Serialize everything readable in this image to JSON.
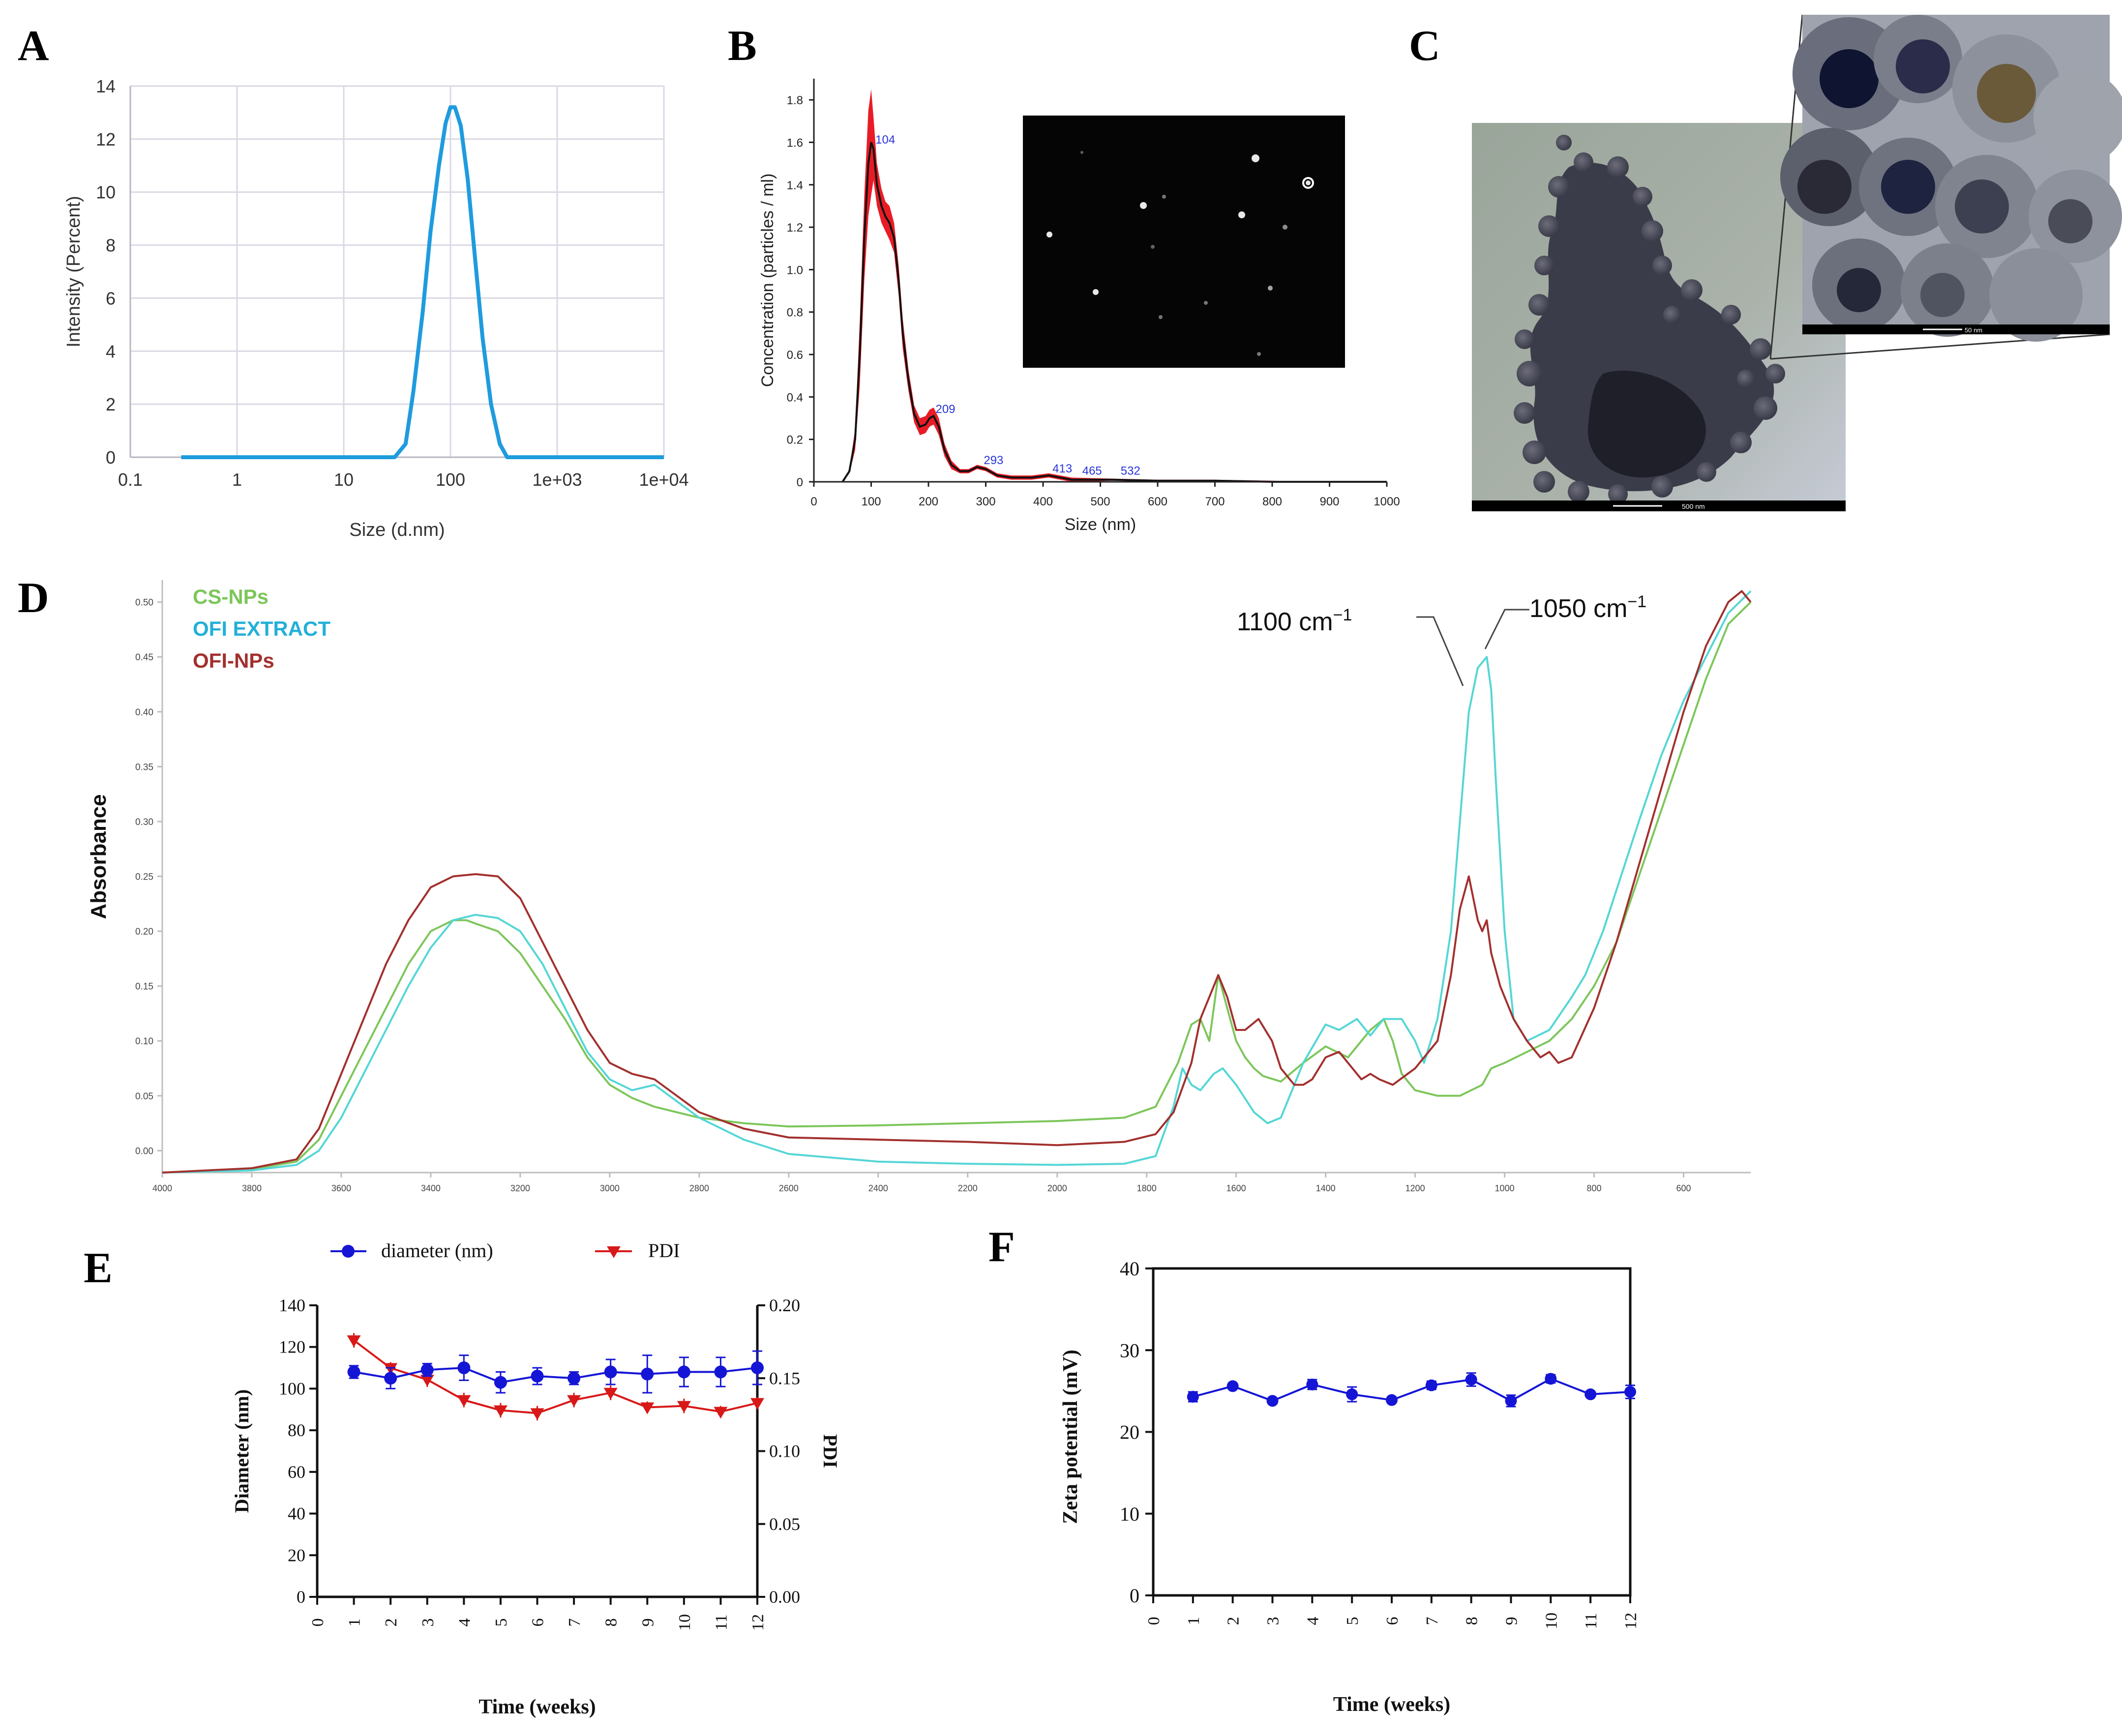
{
  "panels": {
    "A": "A",
    "B": "B",
    "C": "C",
    "D": "D",
    "E": "E",
    "F": "F"
  },
  "colors": {
    "dls": "#1f9bde",
    "nta_band": "#e8101a",
    "nta_mean": "#111111",
    "nta_label": "#2a35d8",
    "cs_nps": "#7cc65a",
    "ofi_extract": "#55d6d6",
    "ofi_nps": "#a2302e",
    "ofi_extract_label": "#22b0d8",
    "diameter": "#1515d6",
    "pdi": "#d81818",
    "zeta": "#1515d6"
  },
  "chart_data": [
    {
      "panel": "A",
      "type": "line",
      "xlabel": "Size (d.nm)",
      "ylabel": "Intensity (Percent)",
      "xscale": "log",
      "xlim": [
        0.1,
        10000
      ],
      "ylim": [
        0,
        14
      ],
      "xticks": [
        "0.1",
        "1",
        "10",
        "100",
        "1e+03",
        "1e+04"
      ],
      "yticks": [
        "0",
        "2",
        "4",
        "6",
        "8",
        "10",
        "12",
        "14"
      ],
      "grid": true,
      "x": [
        0.3,
        30,
        38,
        45,
        55,
        65,
        78,
        90,
        100,
        110,
        125,
        145,
        170,
        200,
        240,
        290,
        340,
        10000
      ],
      "y": [
        0,
        0,
        0.5,
        2.5,
        5.5,
        8.5,
        11.0,
        12.6,
        13.2,
        13.2,
        12.5,
        10.5,
        7.5,
        4.5,
        2.0,
        0.5,
        0,
        0
      ]
    },
    {
      "panel": "B",
      "type": "line",
      "xlabel": "Size (nm)",
      "ylabel": "Concentration (particles / ml)",
      "xlim": [
        0,
        1000
      ],
      "ylim": [
        0,
        1.9
      ],
      "xticks": [
        "0",
        "100",
        "200",
        "300",
        "400",
        "500",
        "600",
        "700",
        "800",
        "900",
        "1000"
      ],
      "yticks": [
        "0",
        "0.2",
        "0.4",
        "0.6",
        "0.8",
        "1.0",
        "1.2",
        "1.4",
        "1.6",
        "1.8"
      ],
      "peak_labels": [
        {
          "x": 104,
          "y": 1.58,
          "text": "104"
        },
        {
          "x": 209,
          "y": 0.31,
          "text": "209"
        },
        {
          "x": 293,
          "y": 0.07,
          "text": "293"
        },
        {
          "x": 413,
          "y": 0.03,
          "text": "413"
        },
        {
          "x": 465,
          "y": 0.02,
          "text": "465"
        },
        {
          "x": 532,
          "y": 0.02,
          "text": "532"
        }
      ],
      "x": [
        50,
        62,
        72,
        80,
        88,
        95,
        100,
        104,
        110,
        118,
        125,
        132,
        140,
        148,
        155,
        165,
        175,
        185,
        195,
        202,
        209,
        218,
        228,
        240,
        255,
        270,
        285,
        300,
        320,
        345,
        380,
        410,
        450,
        520,
        600,
        700,
        800,
        900,
        1000
      ],
      "y": [
        0.0,
        0.05,
        0.2,
        0.6,
        1.15,
        1.5,
        1.6,
        1.57,
        1.4,
        1.3,
        1.25,
        1.22,
        1.15,
        0.95,
        0.7,
        0.48,
        0.32,
        0.26,
        0.27,
        0.3,
        0.31,
        0.26,
        0.15,
        0.08,
        0.05,
        0.05,
        0.07,
        0.06,
        0.03,
        0.02,
        0.02,
        0.03,
        0.01,
        0.01,
        0.005,
        0.005,
        0.0,
        0.0,
        0.0
      ],
      "band": [
        0.0,
        0.06,
        0.25,
        0.75,
        1.35,
        1.75,
        1.85,
        1.72,
        1.5,
        1.38,
        1.32,
        1.3,
        1.22,
        1.02,
        0.77,
        0.53,
        0.36,
        0.3,
        0.31,
        0.34,
        0.35,
        0.3,
        0.18,
        0.1,
        0.06,
        0.06,
        0.08,
        0.07,
        0.04,
        0.03,
        0.03,
        0.04,
        0.02,
        0.015,
        0.01,
        0.01,
        0.005,
        0.0,
        0.0
      ]
    },
    {
      "panel": "D",
      "type": "line",
      "ylabel": "Absorbance",
      "xlim": [
        4000,
        450
      ],
      "ylim": [
        -0.02,
        0.52
      ],
      "xticks": [
        "4000",
        "3800",
        "3600",
        "3400",
        "3200",
        "3000",
        "2800",
        "2600",
        "2400",
        "2200",
        "2000",
        "1800",
        "1600",
        "1400",
        "1200",
        "1000",
        "800",
        "600"
      ],
      "yticks": [
        "0.00",
        "0.05",
        "0.10",
        "0.15",
        "0.20",
        "0.25",
        "0.30",
        "0.35",
        "0.40",
        "0.45",
        "0.50"
      ],
      "legend_position": "top-left",
      "annotations": [
        {
          "text": "1100 cm",
          "sup": "−1",
          "x": 1060
        },
        {
          "text": "1050 cm",
          "sup": "−1",
          "x": 1030
        }
      ],
      "series": [
        {
          "name": "CS-NPs",
          "x": [
            4000,
            3800,
            3700,
            3650,
            3600,
            3550,
            3500,
            3450,
            3400,
            3350,
            3320,
            3300,
            3250,
            3200,
            3150,
            3100,
            3050,
            3000,
            2950,
            2900,
            2850,
            2800,
            2700,
            2600,
            2400,
            2200,
            2000,
            1850,
            1780,
            1730,
            1700,
            1680,
            1660,
            1640,
            1620,
            1600,
            1580,
            1560,
            1540,
            1500,
            1450,
            1400,
            1350,
            1300,
            1270,
            1250,
            1230,
            1200,
            1150,
            1100,
            1050,
            1030,
            1000,
            950,
            900,
            850,
            800,
            750,
            700,
            650,
            600,
            550,
            500,
            450
          ],
          "y": [
            -0.02,
            -0.017,
            -0.01,
            0.01,
            0.05,
            0.09,
            0.13,
            0.17,
            0.2,
            0.21,
            0.21,
            0.207,
            0.2,
            0.18,
            0.15,
            0.12,
            0.085,
            0.06,
            0.048,
            0.04,
            0.035,
            0.03,
            0.025,
            0.022,
            0.023,
            0.025,
            0.027,
            0.03,
            0.04,
            0.08,
            0.115,
            0.12,
            0.1,
            0.16,
            0.13,
            0.1,
            0.085,
            0.075,
            0.068,
            0.063,
            0.08,
            0.095,
            0.085,
            0.11,
            0.12,
            0.1,
            0.07,
            0.055,
            0.05,
            0.05,
            0.06,
            0.075,
            0.08,
            0.09,
            0.1,
            0.12,
            0.15,
            0.19,
            0.25,
            0.31,
            0.37,
            0.43,
            0.48,
            0.5
          ]
        },
        {
          "name": "OFI EXTRACT",
          "x": [
            4000,
            3800,
            3700,
            3650,
            3600,
            3550,
            3500,
            3450,
            3400,
            3350,
            3300,
            3250,
            3200,
            3150,
            3100,
            3050,
            3000,
            2950,
            2900,
            2850,
            2800,
            2700,
            2600,
            2400,
            2200,
            2000,
            1850,
            1780,
            1740,
            1720,
            1700,
            1680,
            1650,
            1630,
            1600,
            1560,
            1530,
            1500,
            1450,
            1400,
            1370,
            1330,
            1300,
            1270,
            1230,
            1200,
            1180,
            1150,
            1120,
            1100,
            1080,
            1060,
            1040,
            1030,
            1020,
            1000,
            980,
            950,
            900,
            850,
            820,
            780,
            740,
            700,
            650,
            600,
            550,
            500,
            450
          ],
          "y": [
            -0.02,
            -0.018,
            -0.013,
            0.0,
            0.03,
            0.07,
            0.11,
            0.15,
            0.185,
            0.21,
            0.215,
            0.212,
            0.2,
            0.17,
            0.13,
            0.09,
            0.065,
            0.055,
            0.06,
            0.045,
            0.03,
            0.01,
            -0.003,
            -0.01,
            -0.012,
            -0.013,
            -0.012,
            -0.005,
            0.04,
            0.075,
            0.06,
            0.055,
            0.07,
            0.075,
            0.06,
            0.035,
            0.025,
            0.03,
            0.08,
            0.115,
            0.11,
            0.12,
            0.105,
            0.12,
            0.12,
            0.1,
            0.08,
            0.12,
            0.2,
            0.3,
            0.4,
            0.44,
            0.45,
            0.42,
            0.34,
            0.2,
            0.12,
            0.1,
            0.11,
            0.14,
            0.16,
            0.2,
            0.25,
            0.3,
            0.36,
            0.41,
            0.45,
            0.49,
            0.51
          ]
        },
        {
          "name": "OFI-NPs",
          "x": [
            4000,
            3800,
            3700,
            3650,
            3600,
            3550,
            3500,
            3450,
            3400,
            3350,
            3300,
            3250,
            3200,
            3150,
            3100,
            3050,
            3000,
            2950,
            2900,
            2850,
            2800,
            2700,
            2600,
            2400,
            2200,
            2000,
            1850,
            1780,
            1740,
            1700,
            1680,
            1660,
            1640,
            1620,
            1600,
            1580,
            1550,
            1520,
            1500,
            1470,
            1450,
            1430,
            1400,
            1370,
            1340,
            1320,
            1300,
            1280,
            1250,
            1200,
            1150,
            1120,
            1100,
            1080,
            1060,
            1050,
            1040,
            1030,
            1010,
            980,
            950,
            920,
            900,
            880,
            850,
            800,
            750,
            700,
            650,
            600,
            550,
            500,
            470,
            450
          ],
          "y": [
            -0.02,
            -0.016,
            -0.008,
            0.02,
            0.07,
            0.12,
            0.17,
            0.21,
            0.24,
            0.25,
            0.252,
            0.25,
            0.23,
            0.19,
            0.15,
            0.11,
            0.08,
            0.07,
            0.065,
            0.05,
            0.035,
            0.02,
            0.012,
            0.01,
            0.008,
            0.005,
            0.008,
            0.015,
            0.035,
            0.08,
            0.12,
            0.14,
            0.16,
            0.14,
            0.11,
            0.11,
            0.12,
            0.1,
            0.075,
            0.06,
            0.06,
            0.065,
            0.085,
            0.09,
            0.075,
            0.065,
            0.07,
            0.065,
            0.06,
            0.075,
            0.1,
            0.16,
            0.22,
            0.25,
            0.21,
            0.2,
            0.21,
            0.18,
            0.15,
            0.12,
            0.1,
            0.085,
            0.09,
            0.08,
            0.085,
            0.13,
            0.19,
            0.26,
            0.33,
            0.4,
            0.46,
            0.5,
            0.51,
            0.5
          ]
        }
      ]
    },
    {
      "panel": "E",
      "type": "line",
      "xlabel": "Time (weeks)",
      "ylabel": "Diameter (nm)",
      "y2label": "PDI",
      "xlim": [
        0,
        12
      ],
      "ylim": [
        0,
        140
      ],
      "y2lim": [
        0,
        0.2
      ],
      "xticks": [
        "0",
        "1",
        "2",
        "3",
        "4",
        "5",
        "6",
        "7",
        "8",
        "9",
        "10",
        "11",
        "12"
      ],
      "yticks": [
        "0",
        "20",
        "40",
        "60",
        "80",
        "100",
        "120",
        "140"
      ],
      "y2ticks": [
        "0.00",
        "0.05",
        "0.10",
        "0.15",
        "0.20"
      ],
      "legend_position": "top",
      "series": [
        {
          "name": "diameter (nm)",
          "axis": "left",
          "marker": "circle",
          "x": [
            1,
            2,
            3,
            4,
            5,
            6,
            7,
            8,
            9,
            10,
            11,
            12
          ],
          "y": [
            108,
            105,
            109,
            110,
            103,
            106,
            105,
            108,
            107,
            108,
            108,
            110
          ],
          "err": [
            3,
            5,
            3,
            6,
            5,
            4,
            3,
            6,
            9,
            7,
            7,
            8
          ]
        },
        {
          "name": "PDI",
          "axis": "right",
          "marker": "triangle-down",
          "x": [
            1,
            2,
            3,
            4,
            5,
            6,
            7,
            8,
            9,
            10,
            11,
            12
          ],
          "y": [
            0.176,
            0.157,
            0.149,
            0.135,
            0.128,
            0.126,
            0.135,
            0.14,
            0.13,
            0.131,
            0.127,
            0.133
          ],
          "err": [
            0.005,
            0.004,
            0.005,
            0.005,
            0.005,
            0.005,
            0.005,
            0.005,
            0.004,
            0.005,
            0.004,
            0.004
          ]
        }
      ]
    },
    {
      "panel": "F",
      "type": "line",
      "xlabel": "Time (weeks)",
      "ylabel": "Zeta potential (mV)",
      "xlim": [
        0,
        12
      ],
      "ylim": [
        0,
        40
      ],
      "xticks": [
        "0",
        "1",
        "2",
        "3",
        "4",
        "5",
        "6",
        "7",
        "8",
        "9",
        "10",
        "11",
        "12"
      ],
      "yticks": [
        "0",
        "10",
        "20",
        "30",
        "40"
      ],
      "series": [
        {
          "marker": "circle",
          "x": [
            1,
            2,
            3,
            4,
            5,
            6,
            7,
            8,
            9,
            10,
            11,
            12
          ],
          "y": [
            24.3,
            25.6,
            23.8,
            25.8,
            24.6,
            23.9,
            25.7,
            26.4,
            23.8,
            26.5,
            24.6,
            24.9
          ],
          "err": [
            0.6,
            0.3,
            0.2,
            0.6,
            0.9,
            0.2,
            0.5,
            0.8,
            0.7,
            0.5,
            0.2,
            0.8
          ]
        }
      ]
    }
  ],
  "images": {
    "nta_frame": "nta-video-frame",
    "tem_low": {
      "scale_label": "500 nm"
    },
    "tem_high": {
      "scale_label": "50 nm"
    }
  }
}
